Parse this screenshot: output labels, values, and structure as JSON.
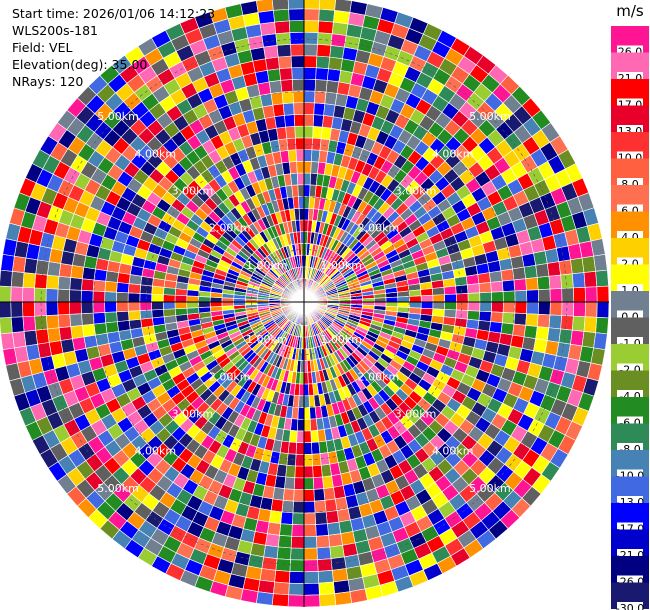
{
  "header": {
    "start_time": "Start time: 2026/01/06 14:12:23",
    "instrument": "WLS200s-181",
    "field": "Field: VEL",
    "elevation": "Elevation(deg): 35.00",
    "nrays": "NRays: 120"
  },
  "chart_data": {
    "type": "ppi-polar",
    "field": "VEL",
    "units": "m/s",
    "elevation_deg": 35.0,
    "n_rays": 120,
    "range_rings_km": [
      1,
      2,
      3,
      4,
      5
    ],
    "range_ring_labels": [
      "1.00km",
      "2.00km",
      "3.00km",
      "4.00km",
      "5.00km"
    ],
    "max_range_km": 5.8,
    "colorbar": {
      "unit": "m/s",
      "labels": [
        "26.0",
        "21.0",
        "17.0",
        "13.0",
        "10.0",
        "8.0",
        "6.0",
        "4.0",
        "2.0",
        "1.0",
        "0.0",
        "-1.0",
        "-2.0",
        "-4.0",
        "-6.0",
        "-8.0",
        "-10.0",
        "-13.0",
        "-17.0",
        "-21.0",
        "-26.0",
        "-30.0"
      ],
      "colors": [
        "#ff1493",
        "#ff69b4",
        "#ff0000",
        "#e8002a",
        "#ff3030",
        "#ff6040",
        "#ff7050",
        "#ff9000",
        "#ffd000",
        "#ffff00",
        "#708090",
        "#606060",
        "#9acd32",
        "#6b8e23",
        "#228b22",
        "#2e8b57",
        "#4682b4",
        "#4169e1",
        "#0000ff",
        "#0000cd",
        "#000080",
        "#191970"
      ]
    }
  }
}
